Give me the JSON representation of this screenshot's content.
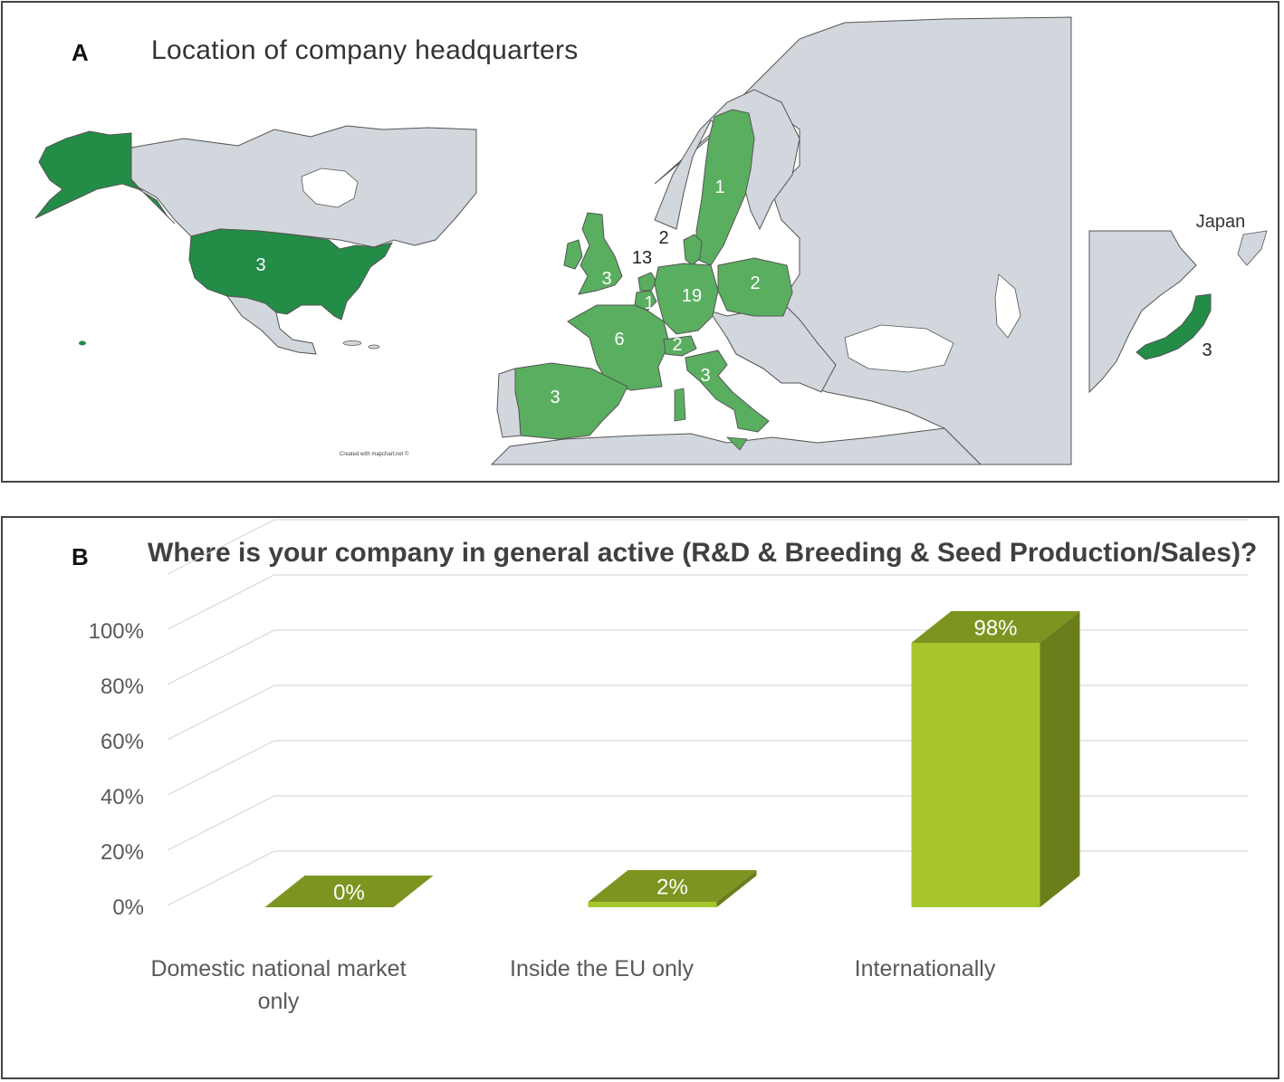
{
  "panel_a": {
    "label": "A",
    "title": "Location of company headquarters",
    "credit": "Created with mapchart.net ©",
    "japan_label": "Japan",
    "colors": {
      "land": "#d1d7dc",
      "dark": "#238c47",
      "mid": "#5aae60",
      "border": "#555555"
    },
    "counts": [
      {
        "region": "United States",
        "value": "3"
      },
      {
        "region": "Sweden",
        "value": "1"
      },
      {
        "region": "Denmark",
        "value": "2"
      },
      {
        "region": "Netherlands",
        "value": "13"
      },
      {
        "region": "United Kingdom",
        "value": "3"
      },
      {
        "region": "Belgium",
        "value": "1"
      },
      {
        "region": "Germany",
        "value": "19"
      },
      {
        "region": "Poland",
        "value": "2"
      },
      {
        "region": "France",
        "value": "6"
      },
      {
        "region": "Switzerland",
        "value": "2"
      },
      {
        "region": "Italy",
        "value": "3"
      },
      {
        "region": "Spain",
        "value": "3"
      },
      {
        "region": "Japan",
        "value": "3"
      }
    ]
  },
  "panel_b": {
    "label": "B",
    "title": "Where is your company in general active (R&D & Breeding & Seed Production/Sales)?"
  },
  "chart_data": {
    "type": "bar",
    "title": "Where is your company in general active (R&D & Breeding & Seed Production/Sales)?",
    "categories": [
      "Domestic national market only",
      "Inside the EU only",
      "Internationally"
    ],
    "category_lines": [
      [
        "Domestic national market",
        "only"
      ],
      [
        "Inside the EU only"
      ],
      [
        "Internationally"
      ]
    ],
    "values": [
      0,
      2,
      98
    ],
    "value_labels": [
      "0%",
      "2%",
      "98%"
    ],
    "ylim": [
      0,
      100
    ],
    "yticks": [
      "0%",
      "20%",
      "40%",
      "60%",
      "80%",
      "100%"
    ],
    "grid": true,
    "colors": {
      "front": "#a6c62c",
      "side": "#6a7f1b",
      "top": "#7c9520"
    }
  }
}
